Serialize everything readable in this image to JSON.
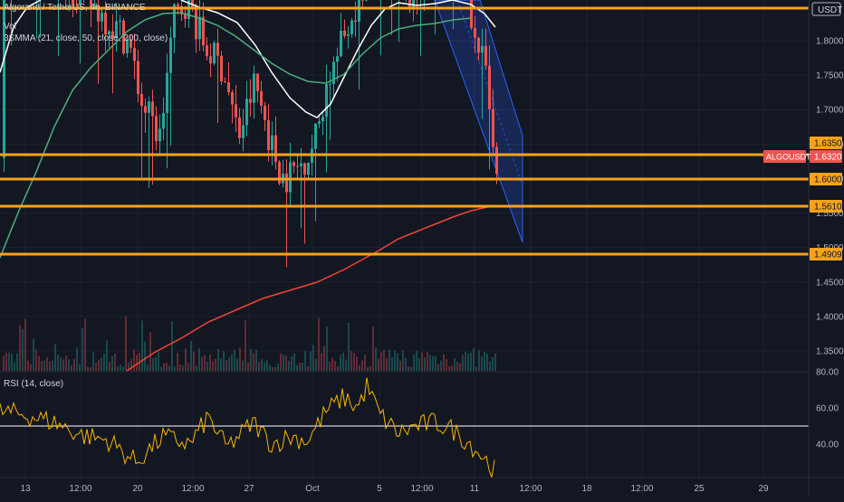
{
  "header": {
    "symbol_title": "Algorand / TetherUS, 4h, BINANCE",
    "vol_label": "Vol",
    "ma_label": "3SMMA (21, close, 50, close, 200, close)"
  },
  "rsi": {
    "label": "RSI (14, close)"
  },
  "price_axis": {
    "currency_label": "USDT",
    "symbol_tag": "ALGOUSDT"
  },
  "colors": {
    "background": "#131722",
    "level_line": "#f7a21b",
    "candle_up": "#26a69a",
    "candle_down": "#ef5350",
    "ma_fast": "#ffffff",
    "ma_mid": "#4caf7d",
    "ma_slow": "#f44336",
    "channel": "#2962ff",
    "rsi_line": "#f7b500"
  },
  "chart_data": [
    {
      "type": "candlestick",
      "title": "Algorand / TetherUS, 4h, BINANCE",
      "y_ticks": [
        "1.8000",
        "1.7500",
        "1.7000",
        "1.6500",
        "1.6000",
        "1.5500",
        "1.5000",
        "1.4500",
        "1.4000",
        "1.3500"
      ],
      "x_ticks": [
        "13",
        "12:00",
        "20",
        "12:00",
        "27",
        "Oct",
        "5",
        "12:00",
        "11",
        "12:00",
        "18",
        "12:00",
        "25",
        "29"
      ],
      "current_price": 1.632,
      "horizontal_levels": [
        {
          "value": 1.849,
          "label": ""
        },
        {
          "value": 1.635,
          "label": "1.6350"
        },
        {
          "value": 1.6,
          "label": "1.6000"
        },
        {
          "value": 1.561,
          "label": "1.5610"
        },
        {
          "value": 1.4909,
          "label": "1.4909"
        }
      ],
      "price_labels": {
        "level_1635": "1.6350",
        "level_1600": "1.6000",
        "level_1561": "1.5610",
        "level_14909": "1.4909",
        "current": "1.6320"
      },
      "series": [
        {
          "name": "3SMMA",
          "values": []
        },
        {
          "name": "Vol",
          "values": []
        }
      ],
      "annotations": [
        "descending channel"
      ]
    },
    {
      "type": "line",
      "title": "RSI (14, close)",
      "y_ticks": [
        "80.00",
        "60.00",
        "40.00"
      ],
      "reference_line": 50
    }
  ]
}
